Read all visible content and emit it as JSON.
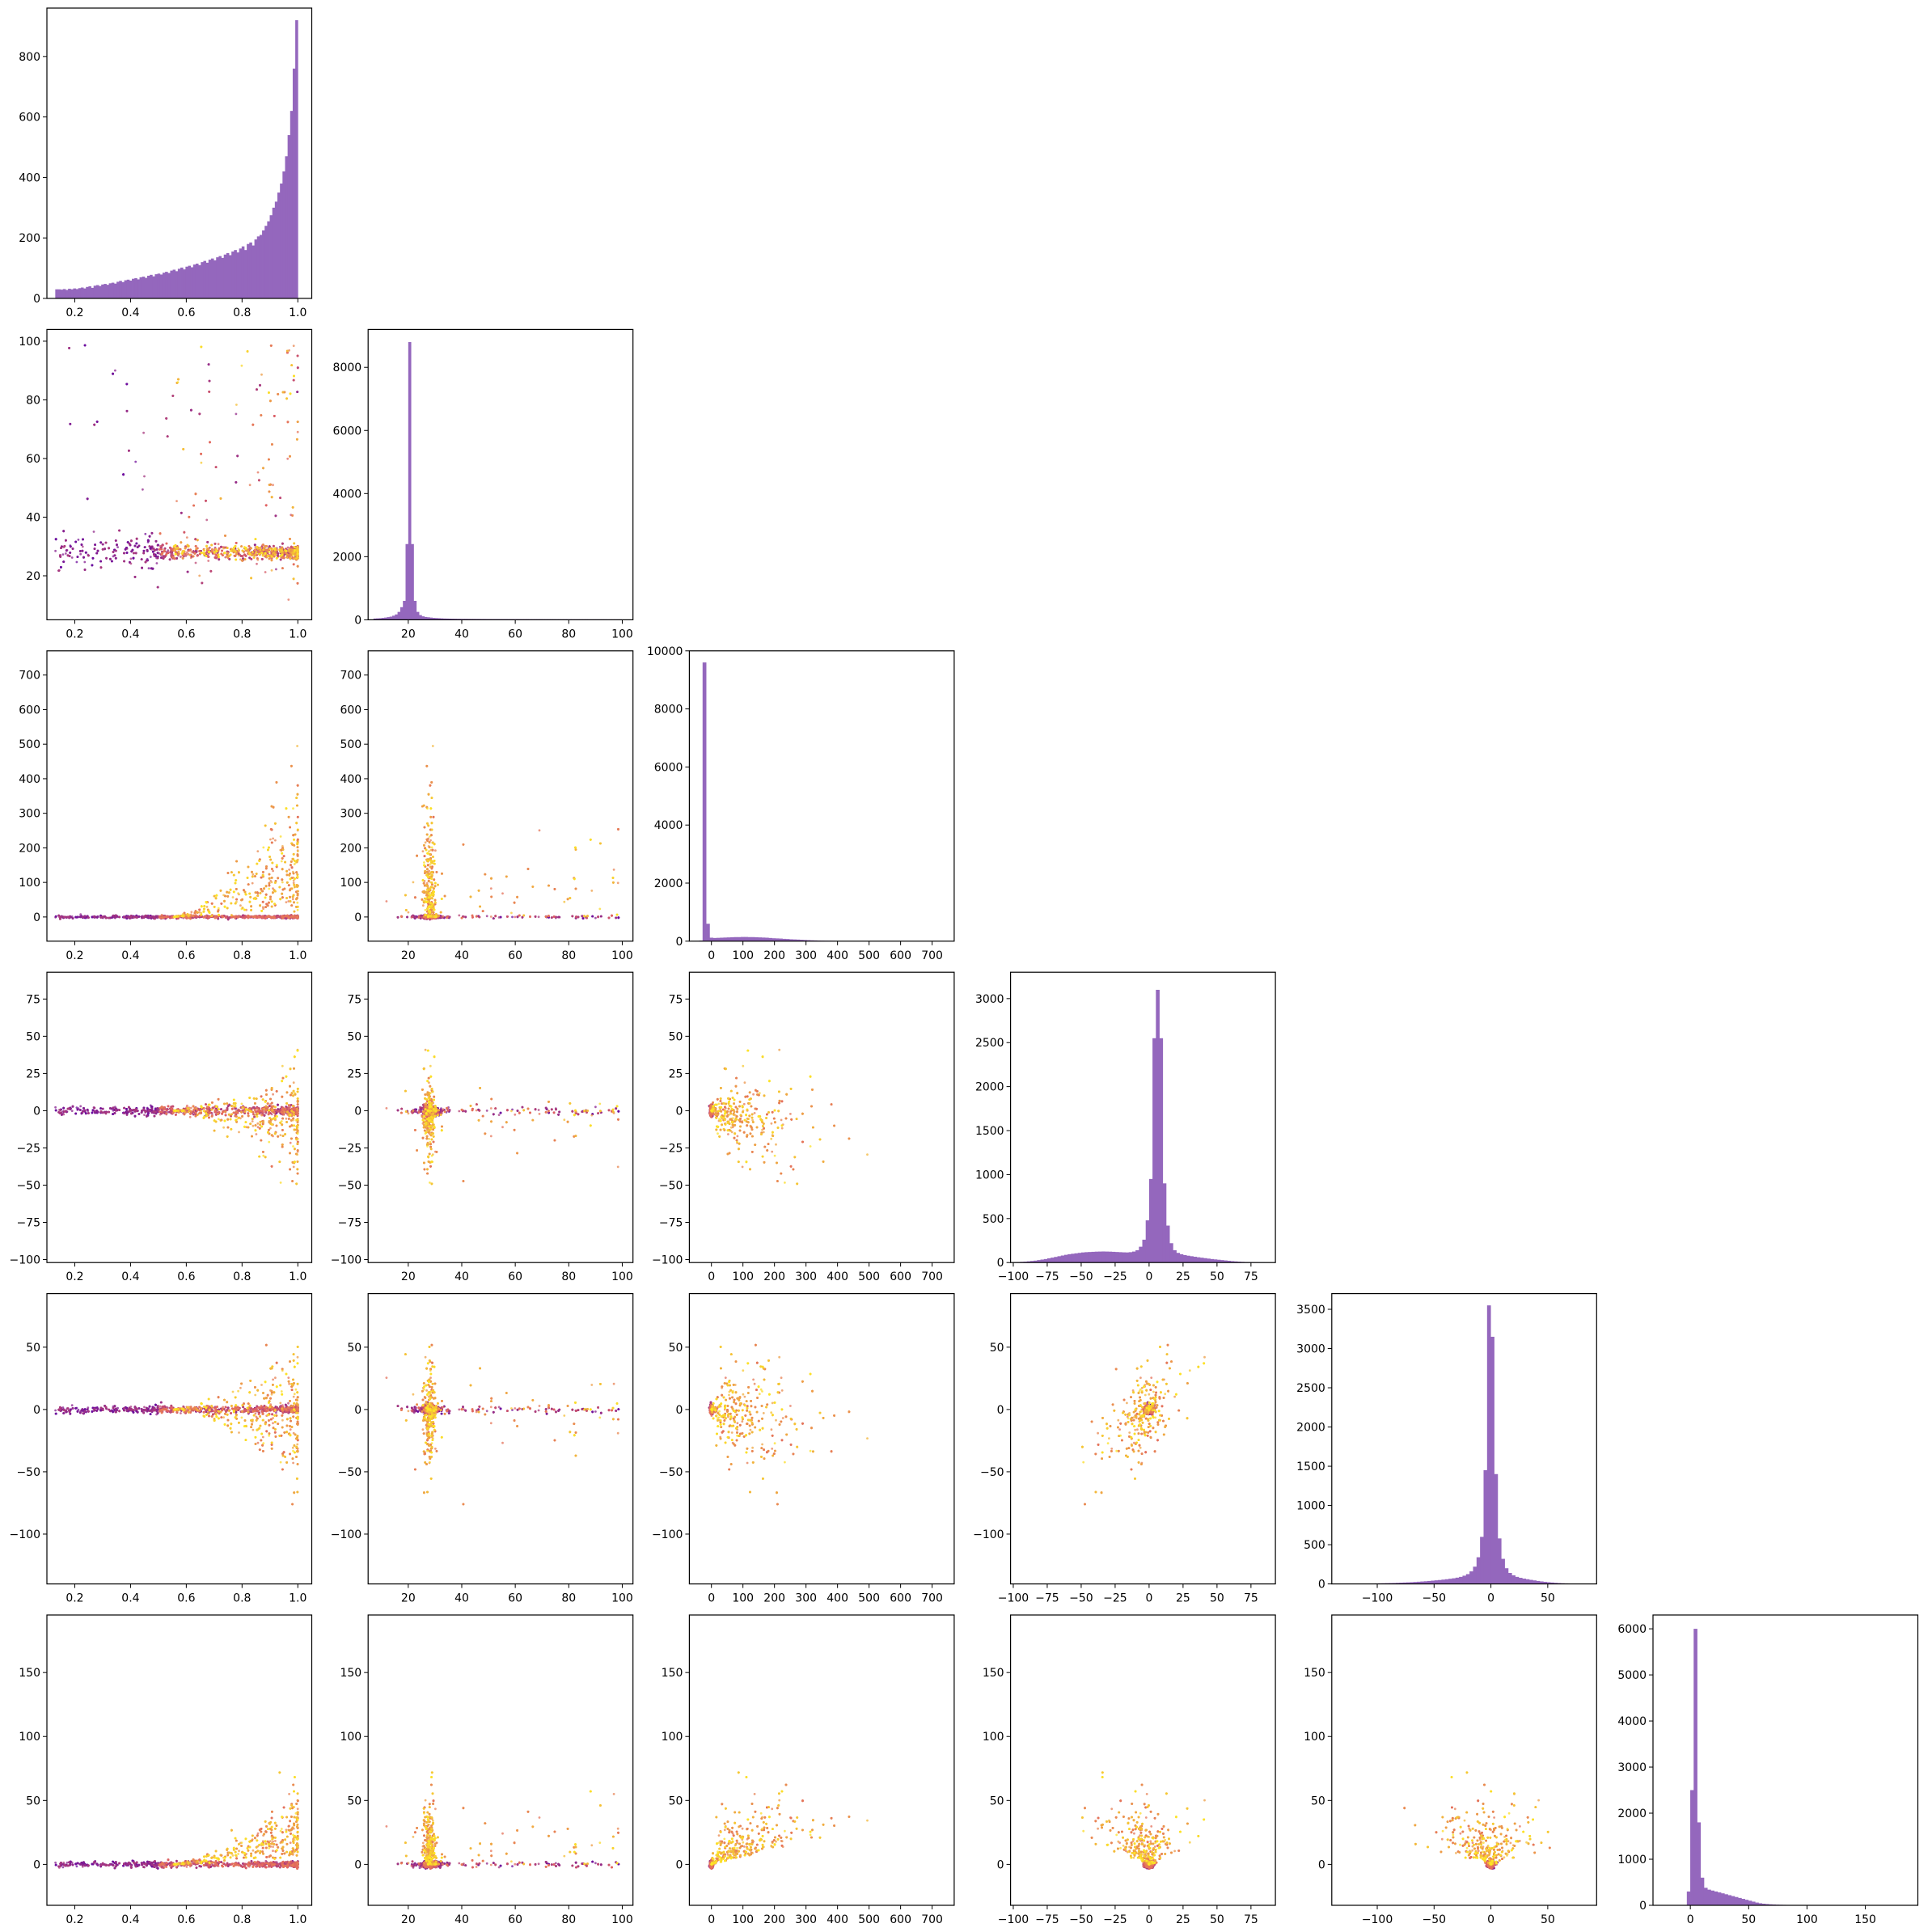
{
  "colors": {
    "hist_fill": "#9467bd",
    "scatter_low": "#5c01a6",
    "scatter_mid": "#e16462",
    "scatter_high": "#fde725",
    "axis": "#000000",
    "background": "#ffffff"
  },
  "variables": [
    {
      "lim": [
        0.1,
        1.05
      ],
      "ticks": [
        0.2,
        0.4,
        0.6,
        0.8,
        1.0
      ],
      "tick_labels": [
        "0.2",
        "0.4",
        "0.6",
        "0.8",
        "1.0"
      ]
    },
    {
      "lim": [
        5,
        104
      ],
      "ticks": [
        20,
        40,
        60,
        80,
        100
      ],
      "tick_labels": [
        "20",
        "40",
        "60",
        "80",
        "100"
      ]
    },
    {
      "lim": [
        -70,
        770
      ],
      "ticks": [
        0,
        100,
        200,
        300,
        400,
        500,
        600,
        700
      ],
      "tick_labels": [
        "0",
        "100",
        "200",
        "300",
        "400",
        "500",
        "600",
        "700"
      ]
    },
    {
      "lim": [
        -102,
        93
      ],
      "ticks": [
        -100,
        -75,
        -50,
        -25,
        0,
        25,
        50,
        75
      ],
      "tick_labels": [
        "−100",
        "−75",
        "−50",
        "−25",
        "0",
        "25",
        "50",
        "75"
      ]
    },
    {
      "lim": [
        -140,
        93
      ],
      "ticks": [
        -100,
        -50,
        0,
        50
      ],
      "tick_labels": [
        "−100",
        "−50",
        "0",
        "50"
      ]
    },
    {
      "lim": [
        -32,
        195
      ],
      "ticks": [
        0,
        50,
        100,
        150
      ],
      "tick_labels": [
        "0",
        "50",
        "100",
        "150"
      ]
    }
  ],
  "chart_data": [
    {
      "type": "histogram",
      "var": 0,
      "x_range": [
        0.13,
        1.0
      ],
      "y_lim": [
        0,
        960
      ],
      "y_ticks": [
        0,
        200,
        400,
        600,
        800
      ],
      "y_tick_labels": [
        "0",
        "200",
        "400",
        "600",
        "800"
      ],
      "counts": [
        30,
        30,
        29,
        31,
        28,
        32,
        30,
        33,
        31,
        34,
        36,
        33,
        38,
        40,
        35,
        42,
        44,
        41,
        46,
        48,
        45,
        50,
        52,
        49,
        55,
        58,
        54,
        60,
        62,
        59,
        65,
        67,
        63,
        70,
        72,
        68,
        75,
        78,
        73,
        80,
        82,
        79,
        85,
        88,
        84,
        92,
        95,
        90,
        98,
        102,
        96,
        105,
        108,
        103,
        112,
        115,
        110,
        120,
        124,
        118,
        128,
        132,
        126,
        136,
        140,
        134,
        145,
        150,
        143,
        155,
        160,
        152,
        165,
        172,
        160,
        180,
        185,
        175,
        195,
        205,
        210,
        225,
        240,
        255,
        275,
        300,
        320,
        350,
        380,
        420,
        470,
        540,
        620,
        760,
        920
      ]
    },
    {
      "type": "scatter",
      "x_var": 0,
      "y_var": 1,
      "color_by": "density"
    },
    {
      "type": "histogram",
      "var": 1,
      "x_range": [
        7,
        100
      ],
      "y_lim": [
        0,
        9200
      ],
      "y_ticks": [
        0,
        2000,
        4000,
        6000,
        8000
      ],
      "y_tick_labels": [
        "0",
        "2000",
        "4000",
        "6000",
        "8000"
      ],
      "counts": [
        40,
        45,
        50,
        60,
        70,
        85,
        100,
        130,
        170,
        250,
        400,
        600,
        2400,
        8800,
        2400,
        600,
        250,
        150,
        110,
        90,
        80,
        70,
        60,
        55,
        50,
        45,
        40,
        38,
        36,
        34,
        32,
        30,
        30,
        28,
        28,
        27,
        26,
        26,
        25,
        25,
        24,
        24,
        23,
        23,
        22,
        22,
        22,
        21,
        21,
        21,
        20,
        20,
        20,
        20,
        19,
        19,
        19,
        19,
        18,
        18,
        18,
        18,
        18,
        17,
        17,
        17,
        17,
        17,
        16,
        16,
        16,
        16,
        16,
        16,
        15,
        15,
        15,
        15,
        15,
        15,
        14,
        14,
        14,
        14,
        14,
        14,
        14,
        13,
        13,
        13,
        13,
        13,
        13
      ]
    },
    {
      "type": "scatter",
      "x_var": 0,
      "y_var": 2,
      "color_by": "density"
    },
    {
      "type": "scatter",
      "x_var": 1,
      "y_var": 2,
      "color_by": "density"
    },
    {
      "type": "histogram",
      "var": 2,
      "x_range": [
        -50,
        720
      ],
      "y_lim": [
        0,
        10000
      ],
      "y_ticks": [
        0,
        2000,
        4000,
        6000,
        8000,
        10000
      ],
      "y_tick_labels": [
        "0",
        "2000",
        "4000",
        "6000",
        "8000",
        "10000"
      ],
      "counts": [
        10,
        20,
        9600,
        600,
        120,
        110,
        115,
        120,
        125,
        130,
        135,
        140,
        140,
        145,
        145,
        140,
        140,
        135,
        130,
        125,
        120,
        110,
        100,
        95,
        90,
        80,
        75,
        65,
        60,
        55,
        48,
        42,
        36,
        30,
        26,
        22,
        19,
        16,
        14,
        12,
        10,
        9,
        8,
        7,
        6,
        5,
        5,
        4,
        4,
        3,
        3,
        3,
        2,
        2,
        2,
        2,
        2,
        2,
        1,
        1,
        1,
        1,
        1,
        1,
        1,
        1,
        1,
        1,
        1,
        1
      ]
    },
    {
      "type": "scatter",
      "x_var": 0,
      "y_var": 3,
      "color_by": "density"
    },
    {
      "type": "scatter",
      "x_var": 1,
      "y_var": 3,
      "color_by": "density"
    },
    {
      "type": "scatter",
      "x_var": 2,
      "y_var": 3,
      "color_by": "density"
    },
    {
      "type": "histogram",
      "var": 3,
      "x_range": [
        -100,
        90
      ],
      "y_lim": [
        0,
        3300
      ],
      "y_ticks": [
        0,
        500,
        1000,
        1500,
        2000,
        2500,
        3000
      ],
      "y_tick_labels": [
        "0",
        "500",
        "1000",
        "1500",
        "2000",
        "2500",
        "3000"
      ],
      "counts": [
        4,
        6,
        8,
        10,
        14,
        18,
        22,
        28,
        34,
        40,
        48,
        56,
        64,
        72,
        80,
        88,
        95,
        100,
        105,
        110,
        115,
        118,
        120,
        122,
        124,
        125,
        126,
        125,
        124,
        122,
        120,
        118,
        116,
        115,
        118,
        125,
        140,
        180,
        260,
        480,
        950,
        2550,
        3100,
        2550,
        900,
        420,
        220,
        140,
        110,
        95,
        85,
        78,
        72,
        66,
        60,
        55,
        50,
        45,
        40,
        36,
        32,
        28,
        24,
        20,
        16,
        13,
        10,
        8,
        6,
        5,
        4,
        3,
        2,
        2,
        1,
        1
      ]
    },
    {
      "type": "scatter",
      "x_var": 0,
      "y_var": 4,
      "color_by": "density"
    },
    {
      "type": "scatter",
      "x_var": 1,
      "y_var": 4,
      "color_by": "density"
    },
    {
      "type": "scatter",
      "x_var": 2,
      "y_var": 4,
      "color_by": "density"
    },
    {
      "type": "scatter",
      "x_var": 3,
      "y_var": 4,
      "color_by": "density"
    },
    {
      "type": "histogram",
      "var": 4,
      "x_range": [
        -130,
        80
      ],
      "y_lim": [
        0,
        3700
      ],
      "y_ticks": [
        0,
        500,
        1000,
        1500,
        2000,
        2500,
        3000,
        3500
      ],
      "y_tick_labels": [
        "0",
        "500",
        "1000",
        "1500",
        "2000",
        "2500",
        "3000",
        "3500"
      ],
      "counts": [
        2,
        2,
        3,
        3,
        4,
        4,
        5,
        5,
        6,
        7,
        8,
        9,
        10,
        11,
        12,
        14,
        16,
        18,
        20,
        22,
        25,
        28,
        31,
        34,
        38,
        42,
        46,
        50,
        55,
        60,
        66,
        72,
        80,
        90,
        105,
        125,
        160,
        220,
        340,
        600,
        1450,
        3550,
        3150,
        1400,
        580,
        320,
        200,
        140,
        110,
        90,
        78,
        68,
        60,
        52,
        45,
        38,
        32,
        27,
        22,
        18,
        14,
        11,
        9,
        7,
        5,
        4,
        3,
        2
      ]
    },
    {
      "type": "scatter",
      "x_var": 0,
      "y_var": 5,
      "color_by": "density"
    },
    {
      "type": "scatter",
      "x_var": 1,
      "y_var": 5,
      "color_by": "density"
    },
    {
      "type": "scatter",
      "x_var": 2,
      "y_var": 5,
      "color_by": "density"
    },
    {
      "type": "scatter",
      "x_var": 3,
      "y_var": 5,
      "color_by": "density"
    },
    {
      "type": "scatter",
      "x_var": 4,
      "y_var": 5,
      "color_by": "density"
    },
    {
      "type": "histogram",
      "var": 5,
      "x_range": [
        -3,
        190
      ],
      "y_lim": [
        0,
        6300
      ],
      "y_ticks": [
        0,
        1000,
        2000,
        3000,
        4000,
        5000,
        6000
      ],
      "y_tick_labels": [
        "0",
        "1000",
        "2000",
        "3000",
        "4000",
        "5000",
        "6000"
      ],
      "counts": [
        300,
        2500,
        6000,
        1800,
        600,
        380,
        340,
        320,
        300,
        280,
        260,
        240,
        220,
        200,
        180,
        160,
        140,
        120,
        100,
        80,
        60,
        45,
        35,
        28,
        22,
        18,
        14,
        12,
        10,
        8,
        7,
        6,
        5,
        5,
        4,
        4,
        3,
        3,
        3,
        2,
        2,
        2,
        2,
        2,
        2,
        1,
        1,
        1,
        1,
        1,
        1,
        1,
        1,
        1,
        1,
        1,
        1,
        1,
        1,
        1,
        1,
        1,
        1,
        1,
        1,
        1
      ]
    }
  ]
}
